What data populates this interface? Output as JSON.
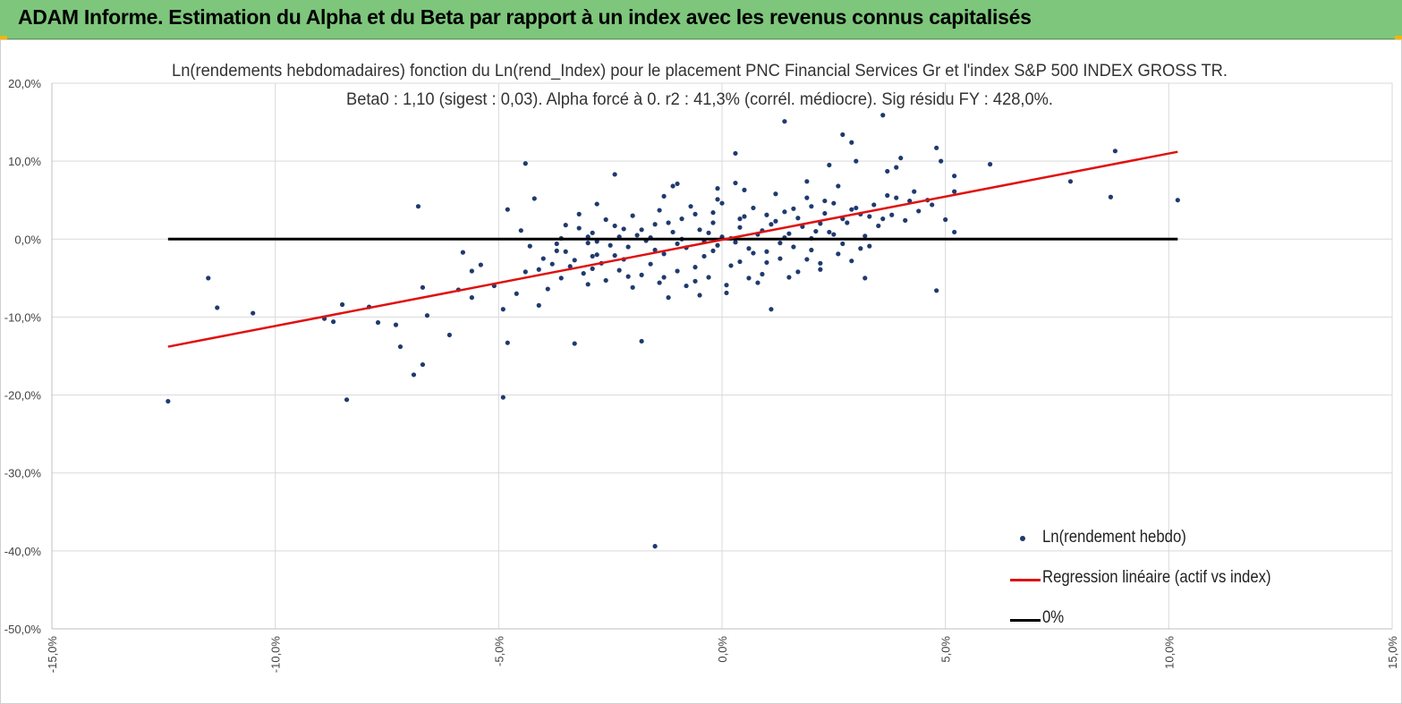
{
  "page": {
    "title": "ADAM Informe. Estimation du Alpha et du Beta par rapport à un index avec les revenus connus capitalisés"
  },
  "chart_data": {
    "type": "scatter",
    "title": "Ln(rendements hebdomadaires) fonction du Ln(rend_Index) pour le placement PNC Financial Services Gr et l'index S&P 500 INDEX GROSS TR.",
    "subtitle": "Beta0 : 1,10 (sigest : 0,03). Alpha forcé à 0. r2 : 41,3% (corrél. médiocre). Sig résidu FY : 428,0%.",
    "xlim": [
      -15,
      15
    ],
    "ylim": [
      -50,
      20
    ],
    "x_ticks": [
      "-15,0%",
      "-10,0%",
      "-5,0%",
      "0,0%",
      "5,0%",
      "10,0%",
      "15,0%"
    ],
    "y_ticks": [
      "20,0%",
      "10,0%",
      "0,0%",
      "-10,0%",
      "-20,0%",
      "-30,0%",
      "-40,0%",
      "-50,0%"
    ],
    "grid": true,
    "legend_position": "bottom-right",
    "series": [
      {
        "name": "Ln(rendement hebdo)",
        "color": "#1f3a6e",
        "points": [
          [
            -12.4,
            -20.8
          ],
          [
            -11.5,
            -5.0
          ],
          [
            -11.3,
            -8.8
          ],
          [
            -10.5,
            -9.5
          ],
          [
            -8.9,
            -10.2
          ],
          [
            -8.7,
            -10.6
          ],
          [
            -8.5,
            -8.4
          ],
          [
            -8.4,
            -20.6
          ],
          [
            -7.9,
            -8.7
          ],
          [
            -7.7,
            -10.7
          ],
          [
            -7.3,
            -11.0
          ],
          [
            -7.2,
            -13.8
          ],
          [
            -6.9,
            -17.4
          ],
          [
            -6.8,
            4.2
          ],
          [
            -6.7,
            -6.2
          ],
          [
            -6.7,
            -16.1
          ],
          [
            -6.6,
            -9.8
          ],
          [
            -6.1,
            -12.3
          ],
          [
            -5.9,
            -6.5
          ],
          [
            -5.8,
            -1.7
          ],
          [
            -5.6,
            -4.1
          ],
          [
            -5.6,
            -7.5
          ],
          [
            -5.4,
            -3.3
          ],
          [
            -5.1,
            -6.0
          ],
          [
            -4.9,
            -9.0
          ],
          [
            -4.9,
            -20.3
          ],
          [
            -4.8,
            -13.3
          ],
          [
            -4.8,
            3.8
          ],
          [
            -4.6,
            -7.0
          ],
          [
            -4.5,
            1.1
          ],
          [
            -4.4,
            9.7
          ],
          [
            -4.2,
            5.2
          ],
          [
            -4.1,
            -8.5
          ],
          [
            -3.5,
            1.8
          ],
          [
            -3.3,
            -13.4
          ],
          [
            -2.8,
            -2.0
          ],
          [
            -2.4,
            8.3
          ],
          [
            -1.8,
            -13.1
          ],
          [
            -1.5,
            -39.4
          ],
          [
            -1.1,
            6.8
          ],
          [
            -1.0,
            7.1
          ],
          [
            0.3,
            11.0
          ],
          [
            1.4,
            15.1
          ],
          [
            2.4,
            9.5
          ],
          [
            2.7,
            13.4
          ],
          [
            2.9,
            12.4
          ],
          [
            3.0,
            10.0
          ],
          [
            3.2,
            -5.0
          ],
          [
            3.6,
            15.9
          ],
          [
            3.7,
            8.7
          ],
          [
            3.9,
            9.2
          ],
          [
            4.0,
            10.4
          ],
          [
            4.8,
            -6.6
          ],
          [
            4.8,
            11.7
          ],
          [
            4.9,
            10.0
          ],
          [
            5.0,
            2.5
          ],
          [
            5.2,
            0.9
          ],
          [
            5.2,
            6.1
          ],
          [
            5.2,
            8.1
          ],
          [
            6.0,
            9.6
          ],
          [
            7.8,
            7.4
          ],
          [
            8.7,
            5.4
          ],
          [
            8.8,
            11.3
          ],
          [
            10.2,
            5.0
          ],
          [
            1.1,
            -9.0
          ],
          [
            -0.5,
            -7.2
          ],
          [
            0.1,
            -6.9
          ],
          [
            -1.2,
            -7.5
          ],
          [
            -2.0,
            -6.2
          ],
          [
            -3.0,
            -5.8
          ],
          [
            -3.6,
            -5.0
          ],
          [
            -3.9,
            -6.4
          ],
          [
            -2.6,
            -5.3
          ],
          [
            -1.4,
            -5.6
          ],
          [
            -0.8,
            -6.0
          ],
          [
            0.6,
            -5.0
          ],
          [
            1.7,
            -4.2
          ],
          [
            2.2,
            -3.1
          ],
          [
            0.9,
            -4.5
          ],
          [
            -0.3,
            -4.9
          ],
          [
            -1.8,
            -4.6
          ],
          [
            -2.9,
            -3.8
          ],
          [
            -3.3,
            -2.7
          ],
          [
            -2.4,
            -2.1
          ],
          [
            -1.6,
            -3.2
          ],
          [
            -0.6,
            -3.6
          ],
          [
            0.4,
            -2.9
          ],
          [
            1.3,
            -2.5
          ],
          [
            2.0,
            -1.4
          ],
          [
            2.7,
            -0.6
          ],
          [
            3.2,
            0.4
          ],
          [
            1.6,
            -1.0
          ],
          [
            0.7,
            -1.8
          ],
          [
            -0.4,
            -2.2
          ],
          [
            -1.3,
            -1.9
          ],
          [
            -2.1,
            -1.0
          ],
          [
            -2.8,
            -0.3
          ],
          [
            -3.5,
            -1.6
          ],
          [
            -4.0,
            -2.5
          ],
          [
            -3.1,
            -4.4
          ],
          [
            -2.3,
            -4.0
          ],
          [
            -1.0,
            -4.1
          ],
          [
            0.2,
            -3.4
          ],
          [
            1.0,
            -3.0
          ],
          [
            1.9,
            -2.6
          ],
          [
            2.6,
            -1.9
          ],
          [
            3.1,
            -1.2
          ],
          [
            2.4,
            0.9
          ],
          [
            1.8,
            1.6
          ],
          [
            1.2,
            2.3
          ],
          [
            0.5,
            2.9
          ],
          [
            -0.2,
            3.4
          ],
          [
            -0.9,
            2.6
          ],
          [
            -1.5,
            1.9
          ],
          [
            -2.2,
            1.3
          ],
          [
            -2.9,
            0.8
          ],
          [
            -3.6,
            0.1
          ],
          [
            -4.3,
            -0.9
          ],
          [
            -3.8,
            -3.2
          ],
          [
            -1.9,
            0.5
          ],
          [
            -1.1,
            0.9
          ],
          [
            -0.5,
            1.2
          ],
          [
            0.0,
            0.3
          ],
          [
            0.3,
            -0.4
          ],
          [
            0.8,
            0.6
          ],
          [
            1.4,
            0.2
          ],
          [
            2.1,
            1.0
          ],
          [
            2.8,
            2.1
          ],
          [
            3.3,
            2.9
          ],
          [
            3.0,
            4.0
          ],
          [
            2.5,
            4.6
          ],
          [
            1.9,
            5.3
          ],
          [
            1.2,
            5.8
          ],
          [
            0.5,
            6.3
          ],
          [
            -0.1,
            5.1
          ],
          [
            -0.7,
            4.2
          ],
          [
            -1.4,
            3.7
          ],
          [
            -2.0,
            3.0
          ],
          [
            -2.6,
            2.5
          ],
          [
            -3.2,
            1.4
          ],
          [
            -3.7,
            -0.6
          ],
          [
            -4.1,
            -3.9
          ],
          [
            -2.5,
            -0.8
          ],
          [
            -1.7,
            -0.2
          ],
          [
            -0.9,
            0.0
          ],
          [
            -0.3,
            0.8
          ],
          [
            0.4,
            1.5
          ],
          [
            1.1,
            1.9
          ],
          [
            1.7,
            2.7
          ],
          [
            2.3,
            3.3
          ],
          [
            2.9,
            3.8
          ],
          [
            3.4,
            4.4
          ],
          [
            3.6,
            2.6
          ],
          [
            3.9,
            5.3
          ],
          [
            4.2,
            4.9
          ],
          [
            4.6,
            5.0
          ],
          [
            4.7,
            4.4
          ],
          [
            4.4,
            3.6
          ],
          [
            3.8,
            3.1
          ],
          [
            3.5,
            1.7
          ],
          [
            3.3,
            -0.9
          ],
          [
            2.9,
            -2.8
          ],
          [
            2.2,
            -3.9
          ],
          [
            1.5,
            -4.9
          ],
          [
            0.8,
            -5.6
          ],
          [
            0.1,
            -5.9
          ],
          [
            -0.6,
            -5.4
          ],
          [
            -1.3,
            -4.9
          ],
          [
            -2.1,
            -4.8
          ],
          [
            -2.7,
            -3.1
          ],
          [
            -3.4,
            -3.5
          ],
          [
            -0.2,
            -1.5
          ],
          [
            0.6,
            -1.2
          ],
          [
            1.3,
            -0.5
          ],
          [
            2.0,
            0.1
          ],
          [
            2.5,
            0.6
          ],
          [
            1.0,
            -1.6
          ],
          [
            -0.1,
            -0.8
          ],
          [
            -0.8,
            -1.1
          ],
          [
            -1.5,
            -1.4
          ],
          [
            -2.2,
            -2.6
          ],
          [
            -2.9,
            -2.2
          ],
          [
            -3.0,
            -0.5
          ],
          [
            -2.3,
            0.3
          ],
          [
            -1.6,
            0.2
          ],
          [
            -1.0,
            -0.6
          ],
          [
            -0.4,
            -0.3
          ],
          [
            0.2,
            0.1
          ],
          [
            0.9,
            1.1
          ],
          [
            1.5,
            0.7
          ],
          [
            2.2,
            2.0
          ],
          [
            2.7,
            2.6
          ],
          [
            3.1,
            3.2
          ],
          [
            2.0,
            4.2
          ],
          [
            1.4,
            3.5
          ],
          [
            0.7,
            4.0
          ],
          [
            0.0,
            4.6
          ],
          [
            -0.6,
            3.2
          ],
          [
            -1.2,
            2.1
          ],
          [
            -1.8,
            1.2
          ],
          [
            -2.4,
            1.7
          ],
          [
            -3.0,
            0.3
          ],
          [
            -3.7,
            -1.5
          ],
          [
            -4.4,
            -4.2
          ],
          [
            -0.2,
            2.1
          ],
          [
            0.4,
            2.6
          ],
          [
            1.0,
            3.1
          ],
          [
            1.6,
            3.9
          ],
          [
            2.3,
            4.9
          ],
          [
            0.3,
            7.2
          ],
          [
            -0.1,
            6.5
          ],
          [
            -1.3,
            5.5
          ],
          [
            -2.8,
            4.5
          ],
          [
            -3.2,
            3.2
          ],
          [
            4.1,
            2.4
          ],
          [
            4.3,
            6.1
          ],
          [
            3.7,
            5.6
          ],
          [
            2.6,
            6.8
          ],
          [
            1.9,
            7.4
          ]
        ]
      },
      {
        "name": "Regression linéaire (actif vs index)",
        "color": "#e01010",
        "line": [
          [
            -12.4,
            -13.8
          ],
          [
            10.2,
            11.2
          ]
        ]
      },
      {
        "name": "0%",
        "color": "#000000",
        "line": [
          [
            -12.4,
            0
          ],
          [
            10.2,
            0
          ]
        ]
      }
    ]
  }
}
